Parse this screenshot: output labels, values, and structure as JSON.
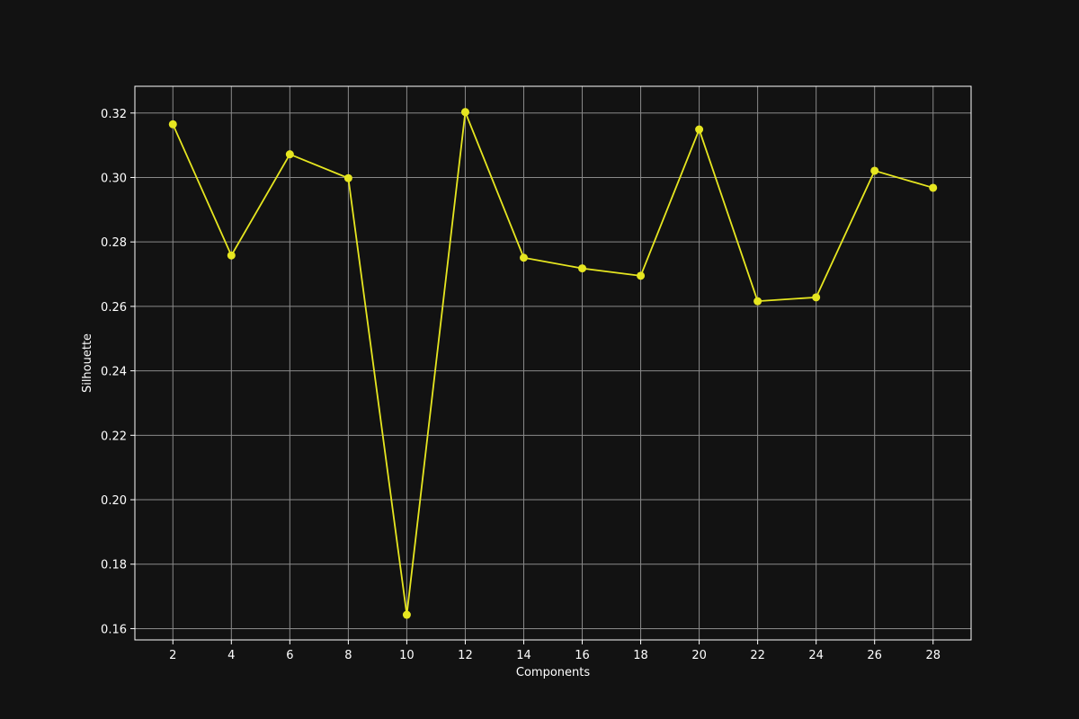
{
  "chart_data": {
    "type": "line",
    "title": "",
    "xlabel": "Components",
    "ylabel": "Silhouette",
    "x": [
      2,
      4,
      6,
      8,
      10,
      12,
      14,
      16,
      18,
      20,
      22,
      24,
      26,
      28
    ],
    "series": [
      {
        "values": [
          0.3165,
          0.2758,
          0.3072,
          0.2998,
          0.1643,
          0.3203,
          0.2751,
          0.2718,
          0.2695,
          0.3149,
          0.2616,
          0.2628,
          0.3021,
          0.2968
        ]
      }
    ],
    "xticks": [
      "2",
      "4",
      "6",
      "8",
      "10",
      "12",
      "14",
      "16",
      "18",
      "20",
      "22",
      "24",
      "26",
      "28"
    ],
    "yticks": [
      "0.16",
      "0.18",
      "0.20",
      "0.22",
      "0.24",
      "0.26",
      "0.28",
      "0.30",
      "0.32"
    ],
    "xlim": [
      0.7,
      29.3
    ],
    "ylim": [
      0.1565,
      0.3283
    ],
    "grid": true,
    "colors": {
      "background": "#121212",
      "line": "#e6e620",
      "grid": "#8a8a8a",
      "text": "#ffffff"
    }
  }
}
